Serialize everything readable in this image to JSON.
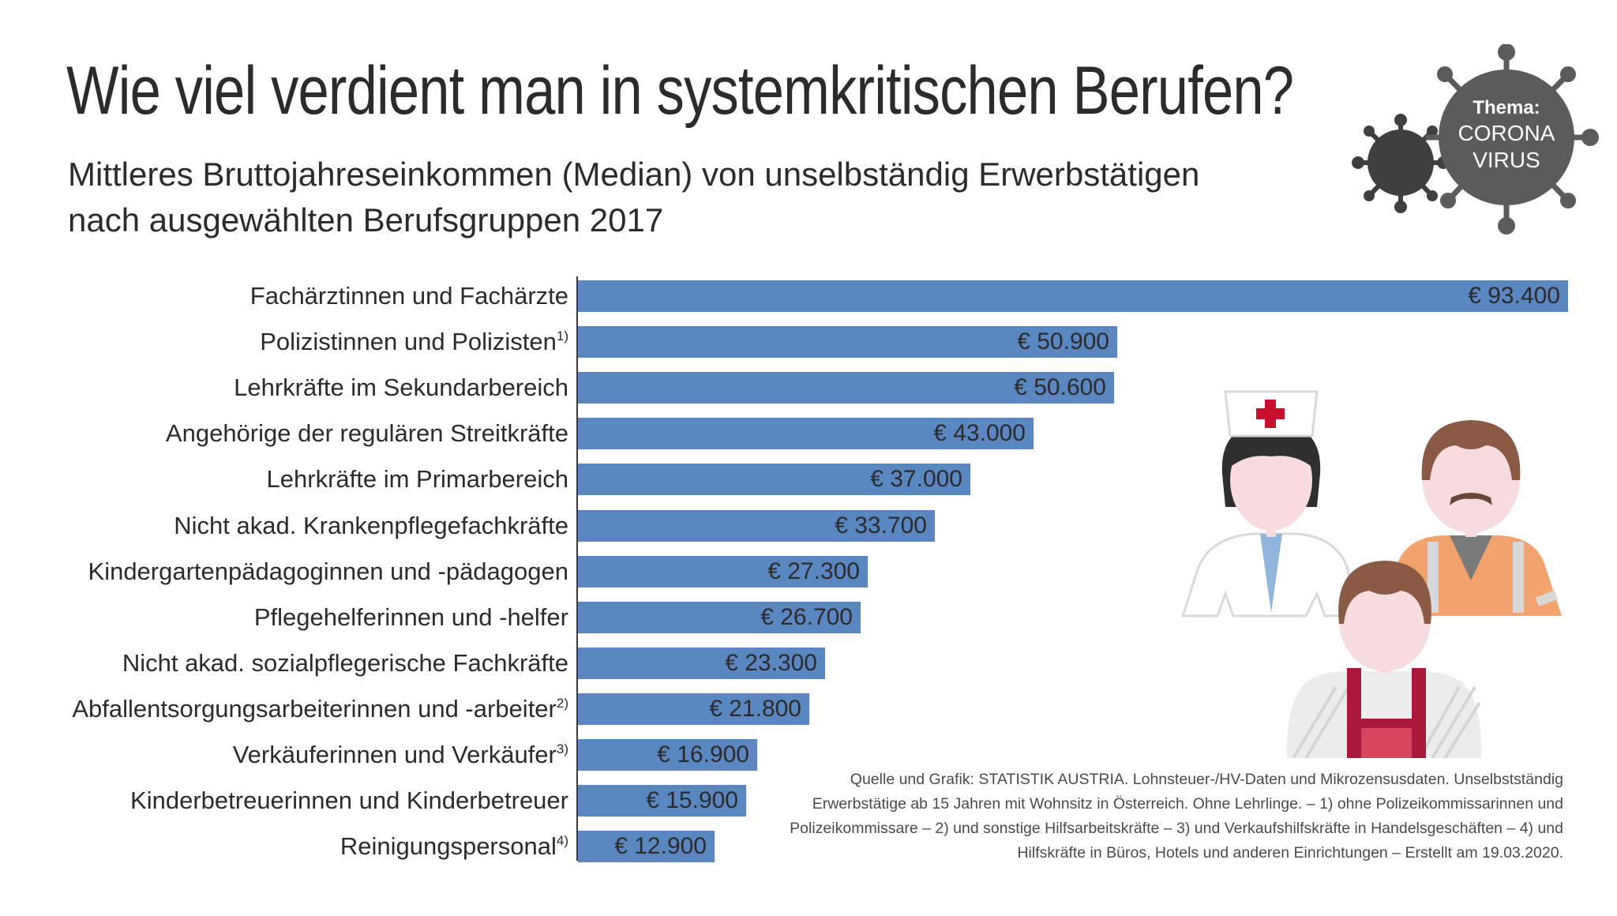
{
  "header": {
    "title": "Wie viel verdient man in systemkritischen Berufen?",
    "subtitle_line1": "Mittleres Bruttojahreseinkommen (Median) von unselbständig Erwerbstätigen",
    "subtitle_line2": "nach ausgewählten Berufsgruppen 2017"
  },
  "badge": {
    "line1": "Thema:",
    "line2": "CORONA",
    "line3": "VIRUS",
    "icon": "coronavirus-icon"
  },
  "colors": {
    "bar": "#5a87bf",
    "badge": "#5b5b5b",
    "badge_dark": "#3f3f3f"
  },
  "chart_data": {
    "type": "bar",
    "orientation": "horizontal",
    "title": "Wie viel verdient man in systemkritischen Berufen?",
    "subtitle": "Mittleres Bruttojahreseinkommen (Median) von unselbständig Erwerbstätigen nach ausgewählten Berufsgruppen 2017",
    "xlabel": "",
    "ylabel": "",
    "xlim": [
      0,
      93400
    ],
    "grid": false,
    "categories": [
      "Fachärztinnen und Fachärzte",
      "Polizistinnen und Polizisten",
      "Lehrkräfte im Sekundarbereich",
      "Angehörige der regulären Streitkräfte",
      "Lehrkräfte im Primarbereich",
      "Nicht akad. Krankenpflegefachkräfte",
      "Kindergartenpädagoginnen und -pädagogen",
      "Pflegehelferinnen und -helfer",
      "Nicht akad. sozialpflegerische Fachkräfte",
      "Abfallentsorgungsarbeiterinnen und -arbeiter",
      "Verkäuferinnen und Verkäufer",
      "Kinderbetreuerinnen und Kinderbetreuer",
      "Reinigungspersonal"
    ],
    "footnote_marks": [
      "",
      "1)",
      "",
      "",
      "",
      "",
      "",
      "",
      "",
      "2)",
      "3)",
      "",
      "4)"
    ],
    "values": [
      93400,
      50900,
      50600,
      43000,
      37000,
      33700,
      27300,
      26700,
      23300,
      21800,
      16900,
      15900,
      12900
    ],
    "value_labels": [
      "€ 93.400",
      "€ 50.900",
      "€ 50.600",
      "€ 43.000",
      "€ 37.000",
      "€ 33.700",
      "€ 27.300",
      "€ 26.700",
      "€ 23.300",
      "€ 21.800",
      "€ 16.900",
      "€ 15.900",
      "€ 12.900"
    ]
  },
  "source": {
    "line1": "Quelle und Grafik: STATISTIK AUSTRIA. Lohnsteuer-/HV-Daten und Mikrozensusdaten. Unselbstständig",
    "line2": "Erwerbstätige ab 15 Jahren mit Wohnsitz in Österreich. Ohne Lehrlinge. – 1) ohne Polizeikommissarinnen und",
    "line3": "Polizeikommissare – 2) und sonstige Hilfsarbeitskräfte – 3) und Verkaufshilfskräfte in Handelsgeschäften – 4) und",
    "line4": "Hilfskräfte in Büros, Hotels und anderen Einrichtungen – Erstellt am 19.03.2020."
  },
  "illustration": {
    "icons": [
      "nurse-icon",
      "worker-icon",
      "child-icon"
    ]
  }
}
